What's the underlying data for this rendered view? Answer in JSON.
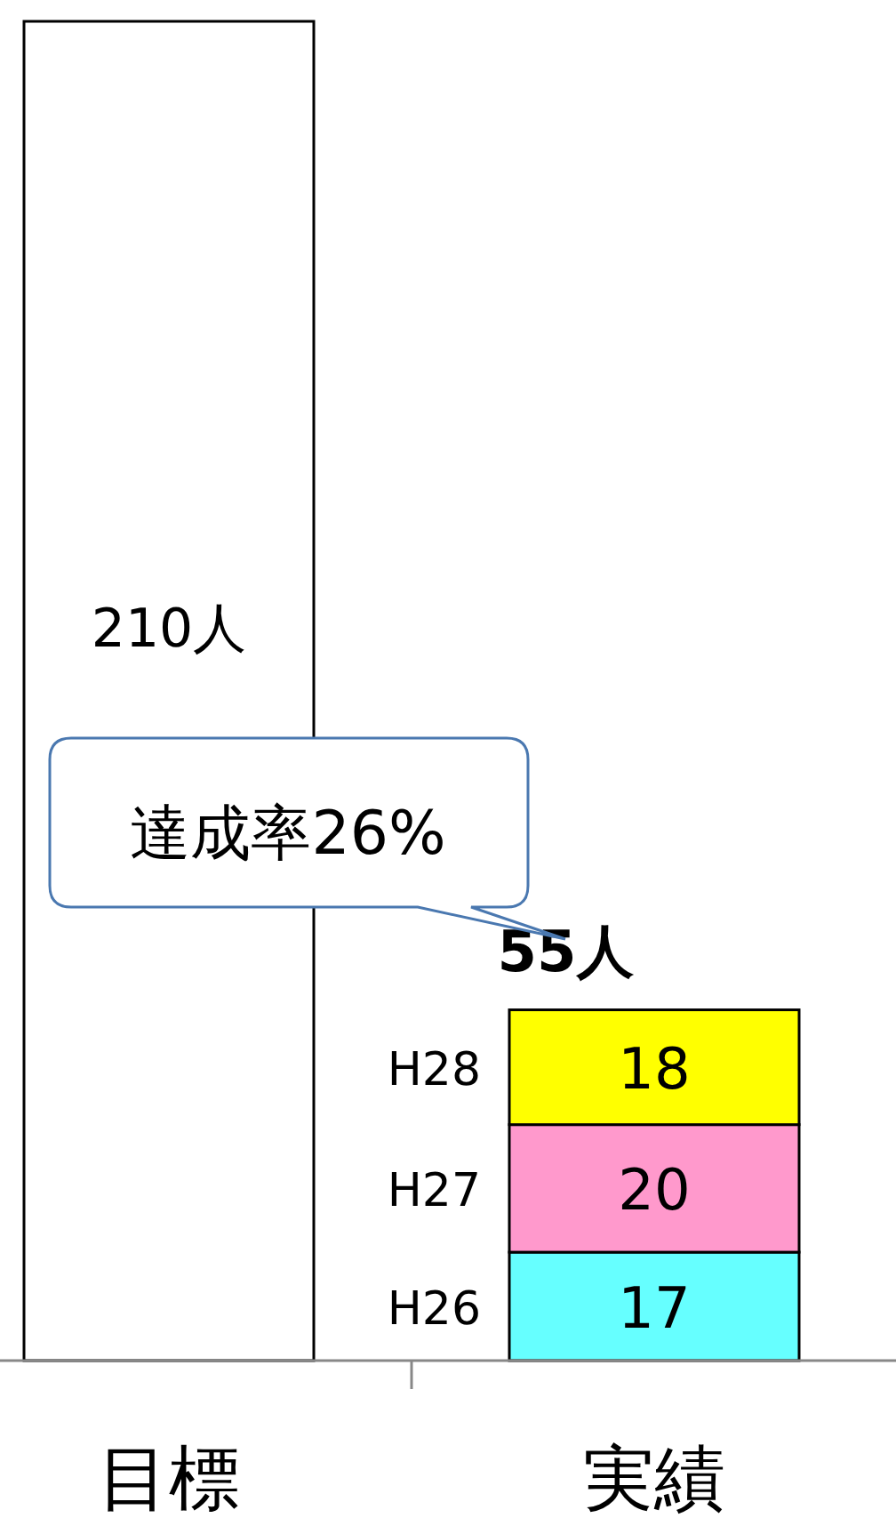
{
  "chart_data": {
    "type": "bar",
    "stacked": true,
    "categories": [
      "目標",
      "実績"
    ],
    "series": [
      {
        "color": "#ffffff",
        "values": [
          210,
          null
        ],
        "value_labels": [
          "210人",
          null
        ]
      },
      {
        "name": "H26",
        "color": "#66ffff",
        "values": [
          null,
          17
        ],
        "value_labels": [
          null,
          "17"
        ]
      },
      {
        "name": "H27",
        "color": "#ff99cc",
        "values": [
          null,
          20
        ],
        "value_labels": [
          null,
          "20"
        ]
      },
      {
        "name": "H28",
        "color": "#ffff00",
        "values": [
          null,
          18
        ],
        "value_labels": [
          null,
          "18"
        ]
      }
    ],
    "totals": [
      null,
      "55人"
    ],
    "annotations": [
      "達成率26%"
    ],
    "ylim": [
      0,
      210
    ],
    "tick_labels": "x",
    "legend": false
  }
}
